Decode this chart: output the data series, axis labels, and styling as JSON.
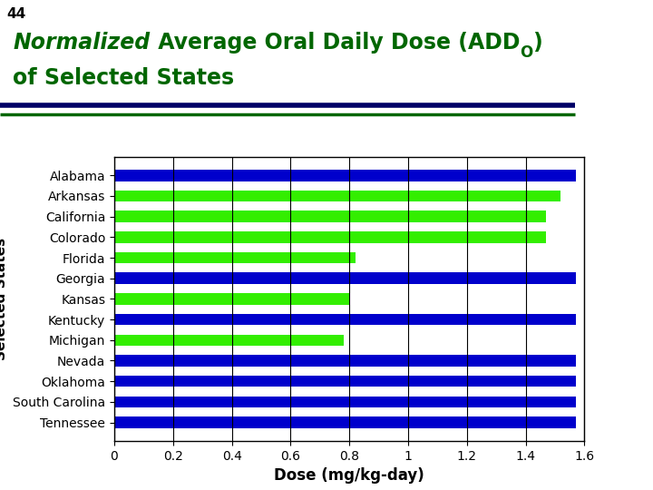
{
  "title_prefix": "44",
  "title_color": "#006600",
  "title_fontsize": 17,
  "xlabel": "Dose (mg/kg-day)",
  "ylabel": "Selected States",
  "states": [
    "Alabama",
    "Arkansas",
    "California",
    "Colorado",
    "Florida",
    "Georgia",
    "Kansas",
    "Kentucky",
    "Michigan",
    "Nevada",
    "Oklahoma",
    "South Carolina",
    "Tennessee"
  ],
  "values": [
    1.57,
    1.52,
    1.47,
    1.47,
    0.82,
    1.57,
    0.8,
    1.57,
    0.78,
    1.57,
    1.57,
    1.57,
    1.57
  ],
  "colors": [
    "#0000cc",
    "#33ee00",
    "#33ee00",
    "#33ee00",
    "#33ee00",
    "#0000cc",
    "#33ee00",
    "#0000cc",
    "#33ee00",
    "#0000cc",
    "#0000cc",
    "#0000cc",
    "#0000cc"
  ],
  "xlim": [
    0,
    1.6
  ],
  "xticks": [
    0,
    0.2,
    0.4,
    0.6,
    0.8,
    1.0,
    1.2,
    1.4,
    1.6
  ],
  "bg_color": "#ffffff",
  "bar_height": 0.55,
  "grid_color": "#000000",
  "axis_label_fontsize": 12,
  "tick_fontsize": 10,
  "separator_line1_color": "#000066",
  "separator_line2_color": "#006600",
  "ylabel_fontsize": 11
}
